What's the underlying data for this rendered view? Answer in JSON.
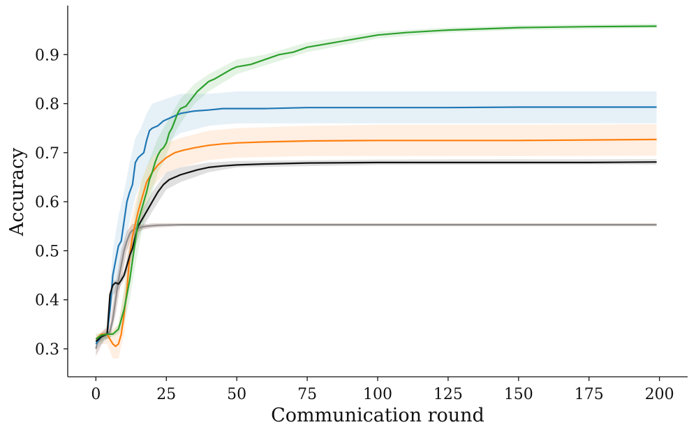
{
  "chart_data": {
    "type": "line",
    "title": "",
    "xlabel": "Communication round",
    "ylabel": "Accuracy",
    "xlim": [
      -10,
      210
    ],
    "ylim": [
      0.243,
      1.0
    ],
    "xticks": [
      0,
      25,
      50,
      75,
      100,
      125,
      150,
      175,
      200
    ],
    "yticks": [
      0.3,
      0.4,
      0.5,
      0.6,
      0.7,
      0.8,
      0.9
    ],
    "xtick_labels": [
      "0",
      "25",
      "50",
      "75",
      "100",
      "125",
      "150",
      "175",
      "200"
    ],
    "ytick_labels": [
      "0.3",
      "0.4",
      "0.5",
      "0.6",
      "0.7",
      "0.8",
      "0.9"
    ],
    "grid": false,
    "legend": "none",
    "series": [
      {
        "color": "#8c8c8c",
        "band_color": "#8c564b",
        "band_opacity": 0.25,
        "points": [
          [
            0,
            0.3
          ],
          [
            1,
            0.325
          ],
          [
            2,
            0.33
          ],
          [
            3,
            0.33
          ],
          [
            4,
            0.33
          ],
          [
            5,
            0.335
          ],
          [
            6,
            0.36
          ],
          [
            7,
            0.4
          ],
          [
            8,
            0.44
          ],
          [
            9,
            0.47
          ],
          [
            10,
            0.5
          ],
          [
            11,
            0.52
          ],
          [
            12,
            0.535
          ],
          [
            13,
            0.542
          ],
          [
            15,
            0.547
          ],
          [
            18,
            0.55
          ],
          [
            22,
            0.552
          ],
          [
            30,
            0.553
          ],
          [
            50,
            0.553
          ],
          [
            100,
            0.553
          ],
          [
            150,
            0.553
          ],
          [
            199,
            0.553
          ]
        ],
        "band": [
          [
            0,
            0.285,
            0.32
          ],
          [
            3,
            0.32,
            0.34
          ],
          [
            5,
            0.32,
            0.35
          ],
          [
            7,
            0.37,
            0.43
          ],
          [
            9,
            0.44,
            0.5
          ],
          [
            11,
            0.5,
            0.54
          ],
          [
            13,
            0.53,
            0.555
          ],
          [
            16,
            0.542,
            0.553
          ],
          [
            20,
            0.547,
            0.556
          ],
          [
            30,
            0.55,
            0.556
          ],
          [
            199,
            0.55,
            0.556
          ]
        ]
      },
      {
        "color": "#ff7f0e",
        "band_color": "#ff7f0e",
        "band_opacity": 0.12,
        "points": [
          [
            0,
            0.32
          ],
          [
            2,
            0.33
          ],
          [
            4,
            0.33
          ],
          [
            5,
            0.32
          ],
          [
            6,
            0.31
          ],
          [
            7,
            0.305
          ],
          [
            8,
            0.31
          ],
          [
            9,
            0.33
          ],
          [
            10,
            0.37
          ],
          [
            11,
            0.42
          ],
          [
            12,
            0.49
          ],
          [
            13,
            0.53
          ],
          [
            14,
            0.555
          ],
          [
            15,
            0.58
          ],
          [
            16,
            0.6
          ],
          [
            18,
            0.64
          ],
          [
            20,
            0.66
          ],
          [
            22,
            0.675
          ],
          [
            25,
            0.69
          ],
          [
            28,
            0.7
          ],
          [
            31,
            0.705
          ],
          [
            35,
            0.71
          ],
          [
            40,
            0.715
          ],
          [
            45,
            0.718
          ],
          [
            50,
            0.72
          ],
          [
            60,
            0.722
          ],
          [
            75,
            0.724
          ],
          [
            100,
            0.725
          ],
          [
            125,
            0.725
          ],
          [
            150,
            0.725
          ],
          [
            175,
            0.726
          ],
          [
            199,
            0.727
          ]
        ],
        "band": [
          [
            0,
            0.31,
            0.33
          ],
          [
            4,
            0.31,
            0.34
          ],
          [
            6,
            0.28,
            0.34
          ],
          [
            8,
            0.28,
            0.35
          ],
          [
            10,
            0.33,
            0.42
          ],
          [
            12,
            0.44,
            0.55
          ],
          [
            14,
            0.51,
            0.6
          ],
          [
            16,
            0.56,
            0.64
          ],
          [
            18,
            0.6,
            0.67
          ],
          [
            20,
            0.63,
            0.69
          ],
          [
            25,
            0.66,
            0.72
          ],
          [
            30,
            0.67,
            0.73
          ],
          [
            40,
            0.685,
            0.745
          ],
          [
            50,
            0.69,
            0.75
          ],
          [
            75,
            0.693,
            0.755
          ],
          [
            100,
            0.693,
            0.757
          ],
          [
            150,
            0.693,
            0.757
          ],
          [
            199,
            0.694,
            0.758
          ]
        ]
      },
      {
        "color": "#1f77b4",
        "band_color": "#1f77b4",
        "band_opacity": 0.11,
        "points": [
          [
            0,
            0.31
          ],
          [
            2,
            0.325
          ],
          [
            4,
            0.33
          ],
          [
            5,
            0.38
          ],
          [
            6,
            0.45
          ],
          [
            7,
            0.48
          ],
          [
            8,
            0.51
          ],
          [
            9,
            0.52
          ],
          [
            10,
            0.56
          ],
          [
            11,
            0.6
          ],
          [
            12,
            0.62
          ],
          [
            13,
            0.635
          ],
          [
            14,
            0.68
          ],
          [
            15,
            0.69
          ],
          [
            16,
            0.695
          ],
          [
            17,
            0.7
          ],
          [
            18,
            0.725
          ],
          [
            19,
            0.745
          ],
          [
            20,
            0.75
          ],
          [
            22,
            0.755
          ],
          [
            24,
            0.765
          ],
          [
            26,
            0.77
          ],
          [
            30,
            0.78
          ],
          [
            35,
            0.785
          ],
          [
            40,
            0.787
          ],
          [
            45,
            0.79
          ],
          [
            50,
            0.79
          ],
          [
            60,
            0.79
          ],
          [
            75,
            0.792
          ],
          [
            100,
            0.792
          ],
          [
            125,
            0.792
          ],
          [
            150,
            0.793
          ],
          [
            175,
            0.793
          ],
          [
            199,
            0.793
          ]
        ],
        "band": [
          [
            0,
            0.3,
            0.32
          ],
          [
            4,
            0.32,
            0.34
          ],
          [
            6,
            0.4,
            0.5
          ],
          [
            8,
            0.45,
            0.57
          ],
          [
            10,
            0.5,
            0.62
          ],
          [
            12,
            0.56,
            0.68
          ],
          [
            14,
            0.61,
            0.73
          ],
          [
            16,
            0.64,
            0.75
          ],
          [
            18,
            0.67,
            0.78
          ],
          [
            20,
            0.69,
            0.8
          ],
          [
            25,
            0.72,
            0.81
          ],
          [
            30,
            0.74,
            0.82
          ],
          [
            40,
            0.755,
            0.82
          ],
          [
            50,
            0.76,
            0.825
          ],
          [
            100,
            0.76,
            0.825
          ],
          [
            199,
            0.76,
            0.825
          ]
        ]
      },
      {
        "color": "#111111",
        "band_color": "#555555",
        "band_opacity": 0.18,
        "points": [
          [
            0,
            0.315
          ],
          [
            2,
            0.325
          ],
          [
            4,
            0.33
          ],
          [
            5,
            0.41
          ],
          [
            6,
            0.43
          ],
          [
            7,
            0.435
          ],
          [
            8,
            0.432
          ],
          [
            9,
            0.44
          ],
          [
            10,
            0.45
          ],
          [
            11,
            0.47
          ],
          [
            12,
            0.49
          ],
          [
            13,
            0.505
          ],
          [
            14,
            0.53
          ],
          [
            15,
            0.55
          ],
          [
            16,
            0.56
          ],
          [
            18,
            0.58
          ],
          [
            20,
            0.6
          ],
          [
            22,
            0.62
          ],
          [
            24,
            0.635
          ],
          [
            26,
            0.645
          ],
          [
            28,
            0.65
          ],
          [
            30,
            0.655
          ],
          [
            33,
            0.66
          ],
          [
            36,
            0.665
          ],
          [
            40,
            0.67
          ],
          [
            45,
            0.673
          ],
          [
            50,
            0.675
          ],
          [
            60,
            0.677
          ],
          [
            75,
            0.679
          ],
          [
            100,
            0.68
          ],
          [
            125,
            0.68
          ],
          [
            150,
            0.68
          ],
          [
            175,
            0.68
          ],
          [
            199,
            0.681
          ]
        ],
        "band": [
          [
            0,
            0.31,
            0.32
          ],
          [
            4,
            0.325,
            0.335
          ],
          [
            6,
            0.41,
            0.44
          ],
          [
            8,
            0.42,
            0.44
          ],
          [
            10,
            0.44,
            0.46
          ],
          [
            12,
            0.47,
            0.51
          ],
          [
            14,
            0.51,
            0.55
          ],
          [
            16,
            0.54,
            0.58
          ],
          [
            20,
            0.58,
            0.62
          ],
          [
            25,
            0.625,
            0.66
          ],
          [
            30,
            0.64,
            0.67
          ],
          [
            40,
            0.66,
            0.68
          ],
          [
            50,
            0.67,
            0.683
          ],
          [
            100,
            0.675,
            0.686
          ],
          [
            199,
            0.676,
            0.687
          ]
        ]
      },
      {
        "color": "#2ca02c",
        "band_color": "#2ca02c",
        "band_opacity": 0.13,
        "points": [
          [
            0,
            0.32
          ],
          [
            2,
            0.328
          ],
          [
            4,
            0.33
          ],
          [
            6,
            0.33
          ],
          [
            8,
            0.34
          ],
          [
            9,
            0.36
          ],
          [
            10,
            0.38
          ],
          [
            11,
            0.41
          ],
          [
            12,
            0.44
          ],
          [
            13,
            0.48
          ],
          [
            14,
            0.52
          ],
          [
            15,
            0.56
          ],
          [
            16,
            0.58
          ],
          [
            17,
            0.6
          ],
          [
            18,
            0.62
          ],
          [
            19,
            0.645
          ],
          [
            20,
            0.66
          ],
          [
            21,
            0.68
          ],
          [
            22,
            0.695
          ],
          [
            23,
            0.705
          ],
          [
            24,
            0.71
          ],
          [
            25,
            0.72
          ],
          [
            26,
            0.74
          ],
          [
            27,
            0.75
          ],
          [
            28,
            0.765
          ],
          [
            29,
            0.78
          ],
          [
            30,
            0.79
          ],
          [
            32,
            0.795
          ],
          [
            34,
            0.81
          ],
          [
            36,
            0.825
          ],
          [
            38,
            0.835
          ],
          [
            40,
            0.845
          ],
          [
            42,
            0.85
          ],
          [
            45,
            0.86
          ],
          [
            48,
            0.87
          ],
          [
            50,
            0.875
          ],
          [
            55,
            0.88
          ],
          [
            60,
            0.89
          ],
          [
            65,
            0.9
          ],
          [
            70,
            0.905
          ],
          [
            75,
            0.915
          ],
          [
            80,
            0.92
          ],
          [
            85,
            0.925
          ],
          [
            90,
            0.93
          ],
          [
            95,
            0.935
          ],
          [
            100,
            0.94
          ],
          [
            110,
            0.945
          ],
          [
            125,
            0.95
          ],
          [
            150,
            0.955
          ],
          [
            175,
            0.957
          ],
          [
            199,
            0.958
          ]
        ],
        "band": [
          [
            0,
            0.31,
            0.33
          ],
          [
            6,
            0.325,
            0.335
          ],
          [
            8,
            0.33,
            0.35
          ],
          [
            10,
            0.35,
            0.42
          ],
          [
            12,
            0.4,
            0.49
          ],
          [
            14,
            0.47,
            0.58
          ],
          [
            16,
            0.53,
            0.64
          ],
          [
            18,
            0.58,
            0.67
          ],
          [
            20,
            0.62,
            0.7
          ],
          [
            22,
            0.66,
            0.73
          ],
          [
            24,
            0.68,
            0.75
          ],
          [
            26,
            0.71,
            0.77
          ],
          [
            28,
            0.74,
            0.79
          ],
          [
            30,
            0.76,
            0.81
          ],
          [
            35,
            0.8,
            0.84
          ],
          [
            40,
            0.825,
            0.86
          ],
          [
            50,
            0.86,
            0.89
          ],
          [
            60,
            0.878,
            0.9
          ],
          [
            75,
            0.905,
            0.925
          ],
          [
            100,
            0.933,
            0.947
          ],
          [
            125,
            0.945,
            0.955
          ],
          [
            150,
            0.95,
            0.96
          ],
          [
            199,
            0.954,
            0.963
          ]
        ]
      }
    ]
  }
}
